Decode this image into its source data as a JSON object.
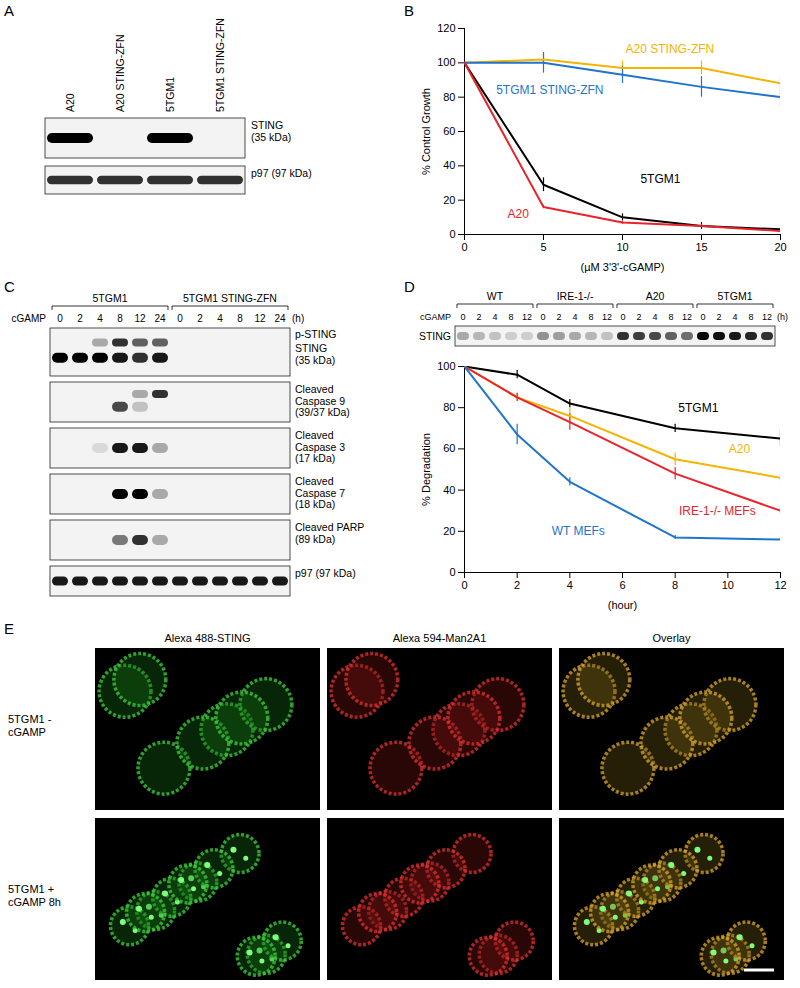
{
  "chart_data": [
    {
      "type": "line",
      "y_label": "% Control Growth",
      "x_label": "(µM 3'3'-cGAMP)",
      "x": [
        0,
        5,
        10,
        15,
        20
      ],
      "xlim": [
        0,
        20
      ],
      "xticks": [
        0,
        5,
        10,
        15,
        20
      ],
      "ylim": [
        0,
        120
      ],
      "yticks": [
        0,
        20,
        40,
        60,
        80,
        100,
        120
      ],
      "series": [
        {
          "name": "A20 STING-ZFN",
          "color": "#f5b400",
          "values": [
            100,
            102,
            97,
            97,
            88
          ],
          "errors": [
            0,
            3,
            4,
            4,
            5
          ]
        },
        {
          "name": "5TGM1 STING-ZFN",
          "color": "#1f74cc",
          "values": [
            100,
            100,
            93,
            86,
            80
          ],
          "errors": [
            0,
            6,
            5,
            6,
            6
          ]
        },
        {
          "name": "5TGM1",
          "color": "#000000",
          "values": [
            100,
            29,
            10,
            5,
            3
          ],
          "errors": [
            0,
            4,
            2,
            2,
            1
          ]
        },
        {
          "name": "A20",
          "color": "#e8232a",
          "values": [
            100,
            16,
            7,
            5,
            2
          ],
          "errors": [
            0,
            1,
            1,
            1,
            1
          ]
        }
      ]
    },
    {
      "type": "line",
      "y_label": "% Degradation",
      "x_label": "(hour)",
      "x": [
        0,
        2,
        4,
        8,
        12
      ],
      "xlim": [
        0,
        12
      ],
      "xticks": [
        0,
        2,
        4,
        6,
        8,
        10,
        12
      ],
      "ylim": [
        0,
        100
      ],
      "yticks": [
        0,
        20,
        40,
        60,
        80,
        100
      ],
      "series": [
        {
          "name": "5TGM1",
          "color": "#000000",
          "values": [
            100,
            96,
            82,
            70,
            65
          ],
          "errors": [
            0,
            2,
            2,
            2,
            4
          ]
        },
        {
          "name": "A20",
          "color": "#f5b400",
          "values": [
            100,
            85,
            76,
            55,
            46
          ],
          "errors": [
            0,
            2,
            4,
            3,
            2
          ]
        },
        {
          "name": "IRE-1-/- MEFs",
          "color": "#e8232a",
          "values": [
            100,
            85,
            73,
            48,
            30
          ],
          "errors": [
            0,
            2,
            4,
            3,
            2
          ]
        },
        {
          "name": "WT MEFs",
          "color": "#1f74cc",
          "values": [
            100,
            67,
            44,
            17,
            16
          ],
          "errors": [
            0,
            5,
            2,
            1,
            1
          ]
        }
      ]
    }
  ],
  "panel_labels": [
    "A",
    "B",
    "C",
    "D",
    "E"
  ],
  "blot_A": {
    "lanes": [
      "A20",
      "A20 STING-ZFN",
      "5TGM1",
      "5TGM1 STING-ZFN"
    ],
    "rows": [
      {
        "label": [
          "STING",
          "(35 kDa)"
        ],
        "bands": [
          1,
          0,
          1,
          0
        ]
      },
      {
        "label": [
          "p97 (97 kDa)"
        ],
        "bands": [
          0.8,
          0.8,
          0.8,
          0.8
        ]
      }
    ]
  },
  "blot_C": {
    "treatment": "cGAMP",
    "unit": "(h)",
    "groups": [
      {
        "label": "5TGM1",
        "times": [
          0,
          2,
          4,
          8,
          12,
          24
        ]
      },
      {
        "label": "5TGM1 STING-ZFN",
        "times": [
          0,
          2,
          4,
          8,
          12,
          24
        ]
      }
    ],
    "rows": [
      {
        "label": [
          "STING",
          "(35 kDa)"
        ],
        "bands": [
          1,
          1,
          1,
          0.9,
          0.8,
          0.9,
          0,
          0,
          0,
          0,
          0,
          0
        ],
        "upper_label": "p-STING",
        "upper_bands": [
          0,
          0,
          0.3,
          0.8,
          0.6,
          0.6,
          0,
          0,
          0,
          0,
          0,
          0
        ]
      },
      {
        "label": [
          "Cleaved",
          "Caspase 9",
          "(39/37 kDa)"
        ],
        "bands": [
          0,
          0,
          0,
          0.7,
          0.2,
          0,
          0,
          0,
          0,
          0,
          0,
          0
        ],
        "upper_bands": [
          0,
          0,
          0,
          0,
          0.3,
          0.8,
          0,
          0,
          0,
          0,
          0,
          0
        ]
      },
      {
        "label": [
          "Cleaved",
          "Caspase 3",
          "(17 kDa)"
        ],
        "bands": [
          0,
          0,
          0.1,
          0.9,
          0.9,
          0.3,
          0,
          0,
          0,
          0,
          0,
          0
        ]
      },
      {
        "label": [
          "Cleaved",
          "Caspase 7",
          "(18 kDa)"
        ],
        "bands": [
          0,
          0,
          0,
          1,
          1,
          0.3,
          0,
          0,
          0,
          0,
          0,
          0
        ]
      },
      {
        "label": [
          "Cleaved PARP",
          "(89 kDa)"
        ],
        "bands": [
          0,
          0,
          0,
          0.5,
          0.8,
          0.3,
          0,
          0,
          0,
          0,
          0,
          0
        ]
      },
      {
        "label": [
          "p97 (97 kDa)"
        ],
        "bands": [
          0.9,
          0.9,
          0.9,
          0.9,
          0.9,
          0.9,
          0.9,
          0.9,
          0.9,
          0.9,
          0.9,
          0.9
        ]
      }
    ]
  },
  "blot_D": {
    "treatment": "cGAMP",
    "unit": "(h)",
    "groups": [
      {
        "label": "WT",
        "times": [
          0,
          2,
          4,
          8,
          12
        ]
      },
      {
        "label": "IRE-1-/-",
        "times": [
          0,
          2,
          4,
          8,
          12
        ]
      },
      {
        "label": "A20",
        "times": [
          0,
          2,
          4,
          8,
          12
        ]
      },
      {
        "label": "5TGM1",
        "times": [
          0,
          2,
          4,
          8,
          12
        ]
      }
    ],
    "rows": [
      {
        "label": [
          "STING"
        ],
        "bands": [
          0.3,
          0.25,
          0.2,
          0.15,
          0.15,
          0.4,
          0.35,
          0.3,
          0.25,
          0.2,
          0.8,
          0.75,
          0.7,
          0.6,
          0.55,
          1,
          0.95,
          0.9,
          0.85,
          0.8
        ]
      }
    ]
  },
  "images_E": {
    "columns": [
      "Alexa 488-STING",
      "Alexa 594-Man2A1",
      "Overlay"
    ],
    "rows": [
      [
        "5TGM1 -",
        "cGAMP"
      ],
      [
        "5TGM1 +",
        "cGAMP 8h"
      ]
    ]
  }
}
